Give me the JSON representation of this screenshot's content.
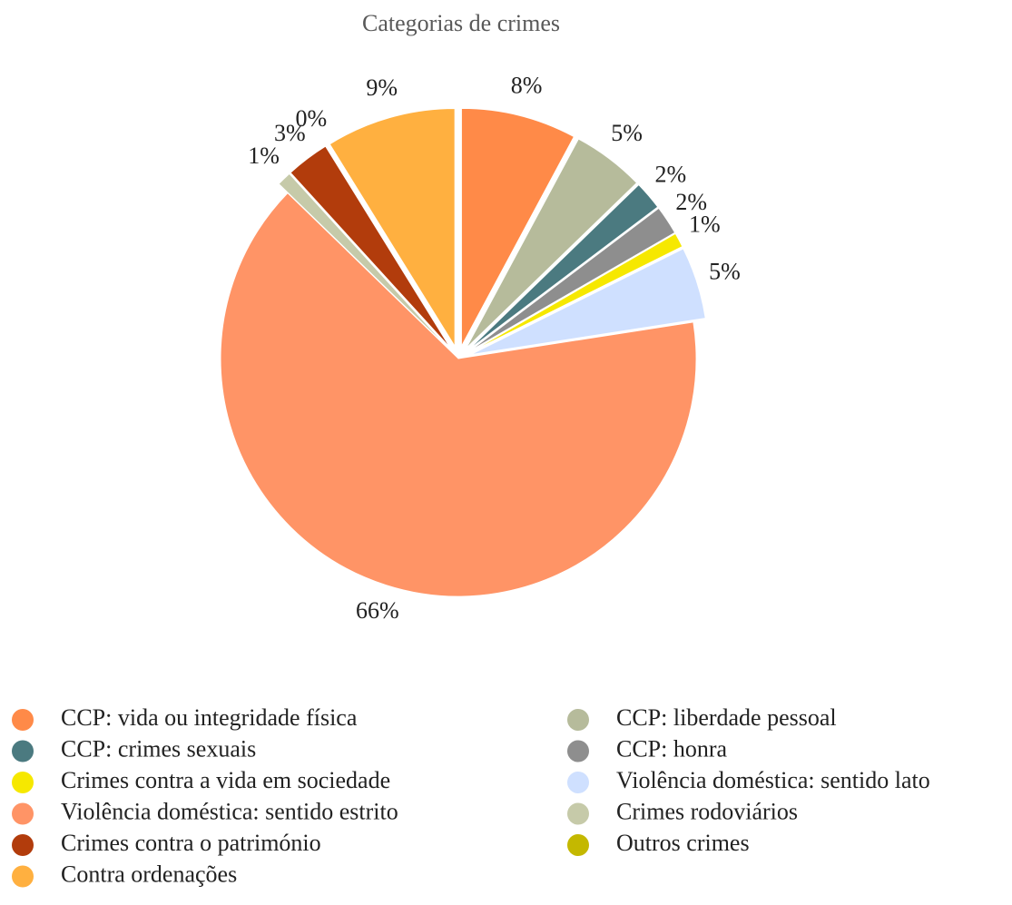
{
  "chart_data": {
    "type": "pie",
    "title": "Categorias de crimes",
    "categories": [
      "CCP: vida ou integridade física",
      "CCP: liberdade pessoal",
      "CCP: crimes sexuais",
      "CCP: honra",
      "Crimes contra a vida em sociedade",
      "Violência doméstica: sentido lato",
      "Violência doméstica: sentido estrito",
      "Crimes rodoviários",
      "Crimes contra o património",
      "Outros crimes",
      "Contra ordenações"
    ],
    "values": [
      8,
      5,
      2,
      2,
      1,
      5,
      66,
      1,
      3,
      0,
      9
    ],
    "colors": [
      "#ff8a48",
      "#b6bb9b",
      "#4b7a80",
      "#8e8e8e",
      "#f6e800",
      "#cfe0ff",
      "#ff9466",
      "#c6caa9",
      "#b23c0c",
      "#c4b800",
      "#ffb040"
    ],
    "legend": "bottom"
  }
}
